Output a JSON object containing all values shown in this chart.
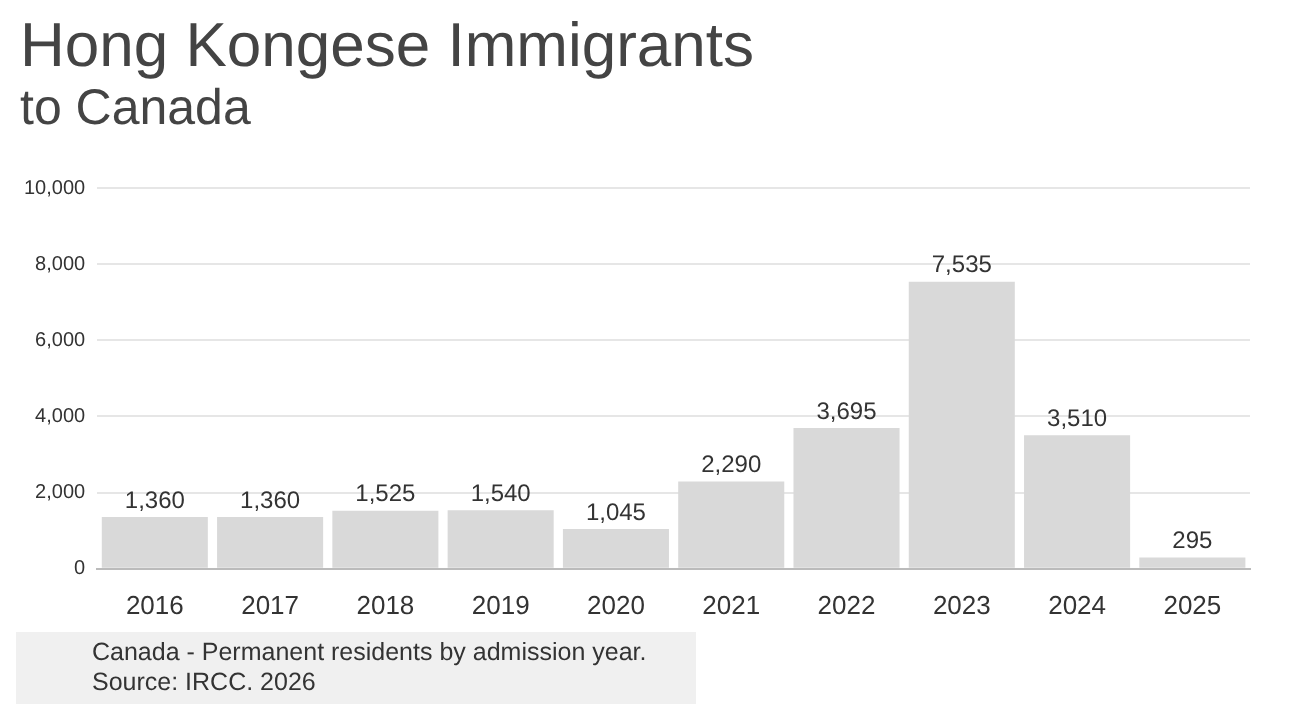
{
  "chart_data": {
    "type": "bar",
    "title": "Hong Kongese Immigrants",
    "subtitle": "to Canada",
    "categories": [
      "2016",
      "2017",
      "2018",
      "2019",
      "2020",
      "2021",
      "2022",
      "2023",
      "2024",
      "2025"
    ],
    "values": [
      1360,
      1360,
      1525,
      1540,
      1045,
      2290,
      3695,
      7535,
      3510,
      295
    ],
    "color": "#d9d9d9",
    "data_labels": true,
    "value_labels": [
      "1,360",
      "1,360",
      "1,525",
      "1,540",
      "1,045",
      "2,290",
      "3,695",
      "7,535",
      "3,510",
      "295"
    ],
    "ylim": [
      0,
      10000
    ],
    "yticks": [
      0,
      {
        "value": 2000,
        "label": "2,000"
      },
      {
        "value": 4000,
        "label": "4,000"
      },
      {
        "value": 6000,
        "label": "6,000"
      },
      {
        "value": 8000,
        "label": "8,000"
      },
      {
        "value": 10000,
        "label": "10,000"
      }
    ],
    "grid": "y",
    "legend": false,
    "annotations": [
      "Canada - Permanent residents by admission year.",
      "Source: IRCC. 2026"
    ]
  }
}
